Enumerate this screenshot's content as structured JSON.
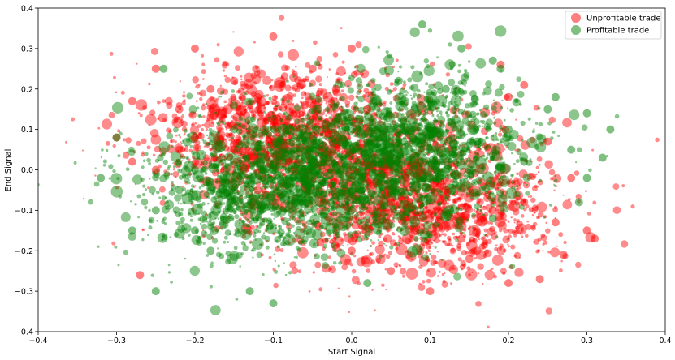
{
  "chart_data": {
    "type": "scatter",
    "title": "",
    "xlabel": "Start Signal",
    "ylabel": "End Signal",
    "xlim": [
      -0.4,
      0.4
    ],
    "ylim": [
      -0.4,
      0.4
    ],
    "xticks": [
      "−0.4",
      "−0.3",
      "−0.2",
      "−0.1",
      "0.0",
      "0.1",
      "0.2",
      "0.3",
      "0.4"
    ],
    "yticks": [
      "−0.4",
      "−0.3",
      "−0.2",
      "−0.1",
      "0.0",
      "0.1",
      "0.2",
      "0.3",
      "0.4"
    ],
    "grid": false,
    "legend_position": "top-right",
    "series": [
      {
        "name": "Unprofitable trade",
        "color": "#ff0000",
        "points": [
          [
            -0.1,
            0.33
          ],
          [
            -0.28,
            0.17
          ],
          [
            -0.27,
            -0.26
          ],
          [
            -0.3,
            0.08
          ],
          [
            -0.25,
            0.25
          ],
          [
            -0.22,
            0.15
          ],
          [
            -0.2,
            0.3
          ],
          [
            -0.18,
            0.2
          ],
          [
            -0.15,
            0.22
          ],
          [
            -0.12,
            0.18
          ],
          [
            -0.05,
            0.25
          ],
          [
            -0.02,
            0.2
          ],
          [
            0.0,
            0.3
          ],
          [
            0.2,
            0.18
          ],
          [
            0.22,
            0.21
          ],
          [
            0.25,
            0.07
          ],
          [
            0.28,
            -0.02
          ],
          [
            0.26,
            -0.13
          ],
          [
            0.3,
            -0.15
          ],
          [
            0.31,
            -0.17
          ],
          [
            0.2,
            -0.28
          ],
          [
            0.24,
            -0.27
          ],
          [
            0.1,
            -0.3
          ],
          [
            0.15,
            -0.22
          ],
          [
            0.05,
            -0.25
          ],
          [
            0.18,
            -0.1
          ],
          [
            0.12,
            -0.05
          ],
          [
            0.08,
            -0.15
          ],
          [
            0.16,
            -0.2
          ],
          [
            0.22,
            -0.08
          ],
          [
            -0.15,
            0.05
          ],
          [
            -0.1,
            0.12
          ],
          [
            -0.08,
            0.02
          ],
          [
            -0.2,
            0.08
          ],
          [
            -0.25,
            0.0
          ],
          [
            -0.28,
            0.02
          ],
          [
            -0.03,
            0.09
          ],
          [
            -0.12,
            -0.05
          ],
          [
            0.05,
            -0.08
          ],
          [
            0.1,
            -0.12
          ],
          [
            -0.18,
            0.13
          ],
          [
            -0.22,
            0.05
          ],
          [
            0.02,
            0.15
          ],
          [
            -0.06,
            0.16
          ],
          [
            0.14,
            -0.17
          ],
          [
            0.27,
            -0.21
          ],
          [
            0.19,
            0.26
          ],
          [
            0.07,
            -0.02
          ],
          [
            -0.04,
            -0.18
          ],
          [
            0.0,
            -0.2
          ]
        ]
      },
      {
        "name": "Profitable trade",
        "color": "#008000",
        "points": [
          [
            0.09,
            0.36
          ],
          [
            0.18,
            0.27
          ],
          [
            0.19,
            0.25
          ],
          [
            0.14,
            0.3
          ],
          [
            0.33,
            0.1
          ],
          [
            0.32,
            0.03
          ],
          [
            0.29,
            -0.08
          ],
          [
            0.3,
            0.14
          ],
          [
            -0.3,
            0.08
          ],
          [
            -0.32,
            -0.02
          ],
          [
            -0.25,
            -0.3
          ],
          [
            -0.24,
            0.25
          ],
          [
            -0.1,
            -0.33
          ],
          [
            -0.13,
            -0.3
          ],
          [
            0.02,
            -0.28
          ],
          [
            0.05,
            0.1
          ],
          [
            0.0,
            0.05
          ],
          [
            -0.05,
            0.0
          ],
          [
            -0.1,
            0.0
          ],
          [
            -0.15,
            -0.05
          ],
          [
            -0.2,
            0.0
          ],
          [
            0.1,
            0.05
          ],
          [
            0.15,
            0.0
          ],
          [
            0.2,
            0.1
          ],
          [
            0.25,
            0.15
          ],
          [
            0.05,
            -0.05
          ],
          [
            0.0,
            -0.1
          ],
          [
            -0.02,
            -0.15
          ],
          [
            -0.2,
            -0.15
          ],
          [
            -0.25,
            -0.1
          ],
          [
            -0.18,
            -0.2
          ],
          [
            -0.15,
            0.1
          ],
          [
            0.08,
            0.15
          ],
          [
            0.12,
            0.2
          ],
          [
            0.22,
            0.02
          ],
          [
            0.3,
            -0.02
          ],
          [
            0.28,
            0.05
          ],
          [
            -0.05,
            0.05
          ],
          [
            0.02,
            0.02
          ],
          [
            0.04,
            0.08
          ],
          [
            -0.08,
            -0.02
          ],
          [
            -0.12,
            0.02
          ],
          [
            0.0,
            -0.05
          ],
          [
            0.16,
            0.07
          ],
          [
            -0.22,
            -0.05
          ],
          [
            0.18,
            -0.12
          ],
          [
            -0.28,
            -0.15
          ],
          [
            0.06,
            0.22
          ],
          [
            -0.02,
            0.12
          ],
          [
            0.26,
            0.18
          ]
        ]
      }
    ]
  }
}
